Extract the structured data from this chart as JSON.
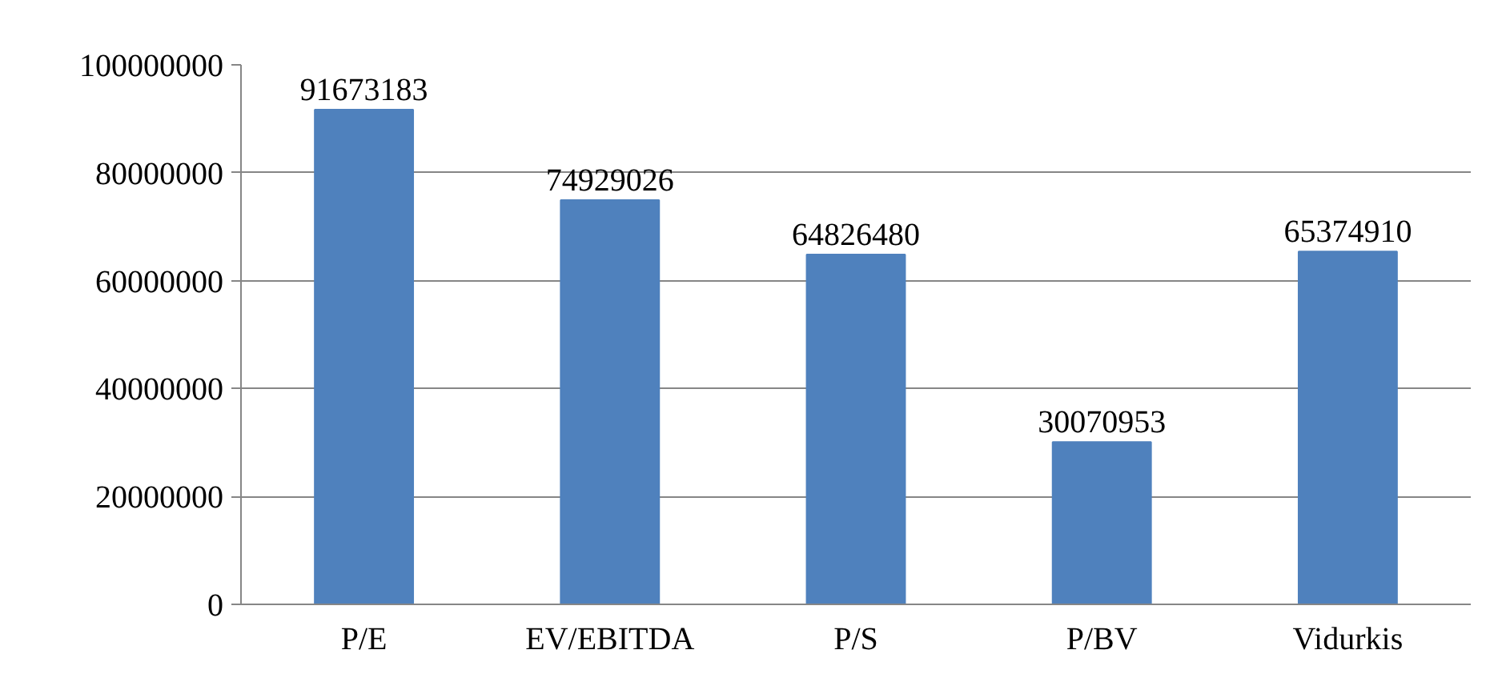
{
  "chart_data": {
    "type": "bar",
    "categories": [
      "P/E",
      "EV/EBITDA",
      "P/S",
      "P/BV",
      "Vidurkis"
    ],
    "values": [
      91673183,
      74929026,
      64826480,
      30070953,
      65374910
    ],
    "color": "#4f81bd",
    "ylim": [
      0,
      100000000
    ],
    "yticks": [
      0,
      20000000,
      40000000,
      60000000,
      80000000,
      100000000
    ],
    "grid": "y",
    "data_labels": true
  }
}
